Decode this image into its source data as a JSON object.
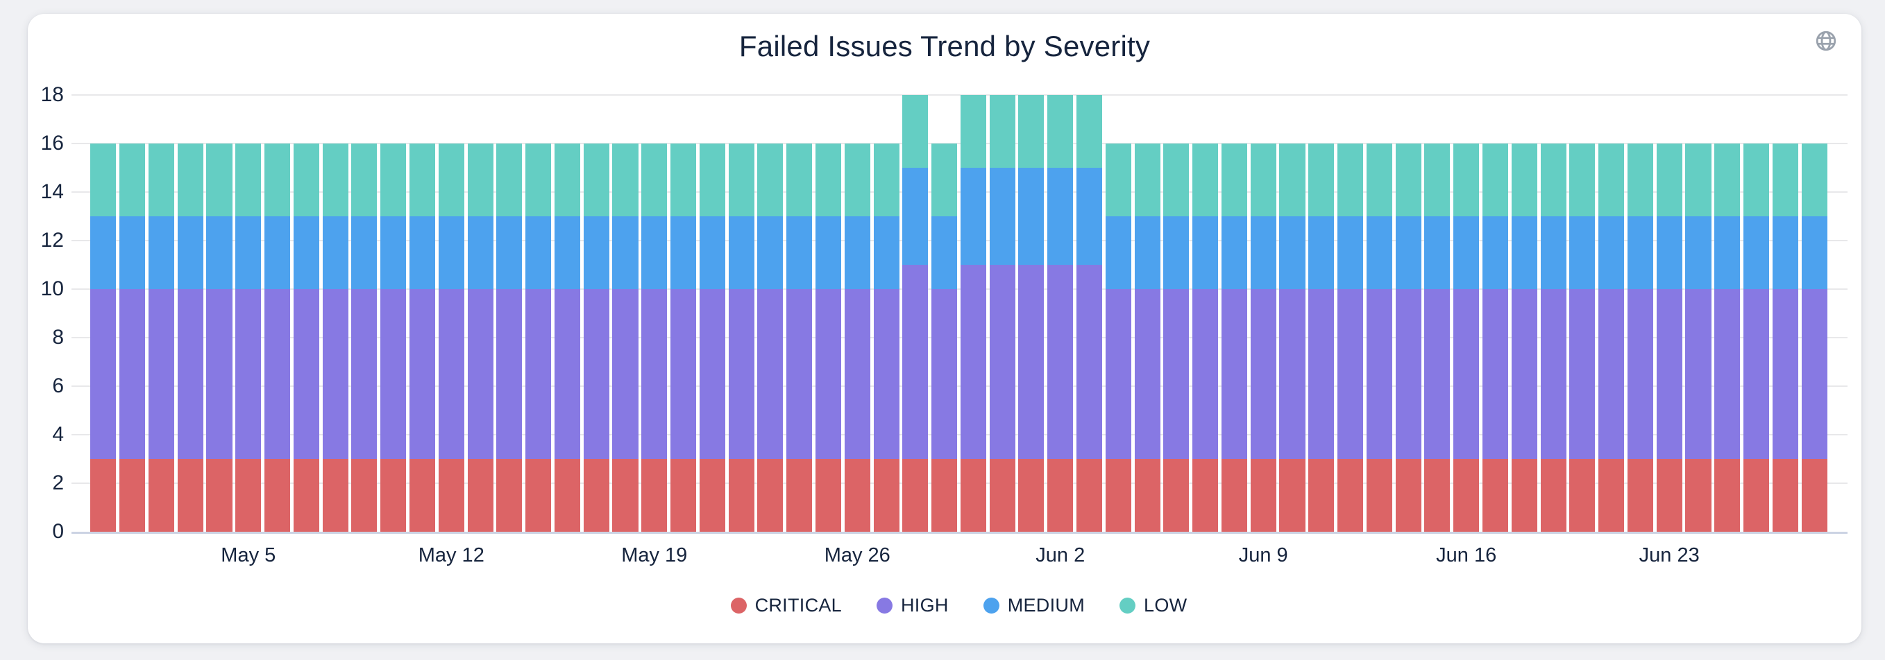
{
  "card": {
    "title": "Failed Issues Trend by Severity"
  },
  "icons": {
    "top_right": "globe-icon"
  },
  "colors": {
    "critical": "#dc6466",
    "high": "#8779e3",
    "medium": "#4da2ee",
    "low": "#64cec3",
    "text": "#16243d",
    "gridline": "#e8e8ea",
    "axis_line": "#ccd3e3",
    "card_bg": "#ffffff",
    "page_bg": "#f0f1f4",
    "globe_icon": "#9aa2ad"
  },
  "chart_data": {
    "type": "bar",
    "stacked": true,
    "title": "Failed Issues Trend by Severity",
    "xlabel": "",
    "ylabel": "",
    "ylim": [
      0,
      18
    ],
    "y_ticks": [
      0,
      2,
      4,
      6,
      8,
      10,
      12,
      14,
      16,
      18
    ],
    "grid": true,
    "legend_position": "bottom",
    "x": [
      "Apr 30",
      "May 1",
      "May 2",
      "May 3",
      "May 4",
      "May 5",
      "May 6",
      "May 7",
      "May 8",
      "May 9",
      "May 10",
      "May 11",
      "May 12",
      "May 13",
      "May 14",
      "May 15",
      "May 16",
      "May 17",
      "May 18",
      "May 19",
      "May 20",
      "May 21",
      "May 22",
      "May 23",
      "May 24",
      "May 25",
      "May 26",
      "May 27",
      "May 28",
      "May 29",
      "May 30",
      "May 31",
      "Jun 1",
      "Jun 2",
      "Jun 3",
      "Jun 4",
      "Jun 5",
      "Jun 6",
      "Jun 7",
      "Jun 8",
      "Jun 9",
      "Jun 10",
      "Jun 11",
      "Jun 12",
      "Jun 13",
      "Jun 14",
      "Jun 15",
      "Jun 16",
      "Jun 17",
      "Jun 18",
      "Jun 19",
      "Jun 20",
      "Jun 21",
      "Jun 22",
      "Jun 23",
      "Jun 24",
      "Jun 25",
      "Jun 26",
      "Jun 27",
      "Jun 28"
    ],
    "x_tick_indices": [
      5,
      12,
      19,
      26,
      33,
      40,
      47,
      54
    ],
    "x_tick_labels": [
      "May 5",
      "May 12",
      "May 19",
      "May 26",
      "Jun 2",
      "Jun 9",
      "Jun 16",
      "Jun 23"
    ],
    "series": [
      {
        "name": "CRITICAL",
        "color": "#dc6466",
        "values": [
          3,
          3,
          3,
          3,
          3,
          3,
          3,
          3,
          3,
          3,
          3,
          3,
          3,
          3,
          3,
          3,
          3,
          3,
          3,
          3,
          3,
          3,
          3,
          3,
          3,
          3,
          3,
          3,
          3,
          3,
          3,
          3,
          3,
          3,
          3,
          3,
          3,
          3,
          3,
          3,
          3,
          3,
          3,
          3,
          3,
          3,
          3,
          3,
          3,
          3,
          3,
          3,
          3,
          3,
          3,
          3,
          3,
          3,
          3,
          3
        ]
      },
      {
        "name": "HIGH",
        "color": "#8779e3",
        "values": [
          7,
          7,
          7,
          7,
          7,
          7,
          7,
          7,
          7,
          7,
          7,
          7,
          7,
          7,
          7,
          7,
          7,
          7,
          7,
          7,
          7,
          7,
          7,
          7,
          7,
          7,
          7,
          7,
          8,
          7,
          8,
          8,
          8,
          8,
          8,
          7,
          7,
          7,
          7,
          7,
          7,
          7,
          7,
          7,
          7,
          7,
          7,
          7,
          7,
          7,
          7,
          7,
          7,
          7,
          7,
          7,
          7,
          7,
          7,
          7
        ]
      },
      {
        "name": "MEDIUM",
        "color": "#4da2ee",
        "values": [
          3,
          3,
          3,
          3,
          3,
          3,
          3,
          3,
          3,
          3,
          3,
          3,
          3,
          3,
          3,
          3,
          3,
          3,
          3,
          3,
          3,
          3,
          3,
          3,
          3,
          3,
          3,
          3,
          4,
          3,
          4,
          4,
          4,
          4,
          4,
          3,
          3,
          3,
          3,
          3,
          3,
          3,
          3,
          3,
          3,
          3,
          3,
          3,
          3,
          3,
          3,
          3,
          3,
          3,
          3,
          3,
          3,
          3,
          3,
          3
        ]
      },
      {
        "name": "LOW",
        "color": "#64cec3",
        "values": [
          3,
          3,
          3,
          3,
          3,
          3,
          3,
          3,
          3,
          3,
          3,
          3,
          3,
          3,
          3,
          3,
          3,
          3,
          3,
          3,
          3,
          3,
          3,
          3,
          3,
          3,
          3,
          3,
          3,
          3,
          3,
          3,
          3,
          3,
          3,
          3,
          3,
          3,
          3,
          3,
          3,
          3,
          3,
          3,
          3,
          3,
          3,
          3,
          3,
          3,
          3,
          3,
          3,
          3,
          3,
          3,
          3,
          3,
          3,
          3
        ]
      }
    ]
  }
}
